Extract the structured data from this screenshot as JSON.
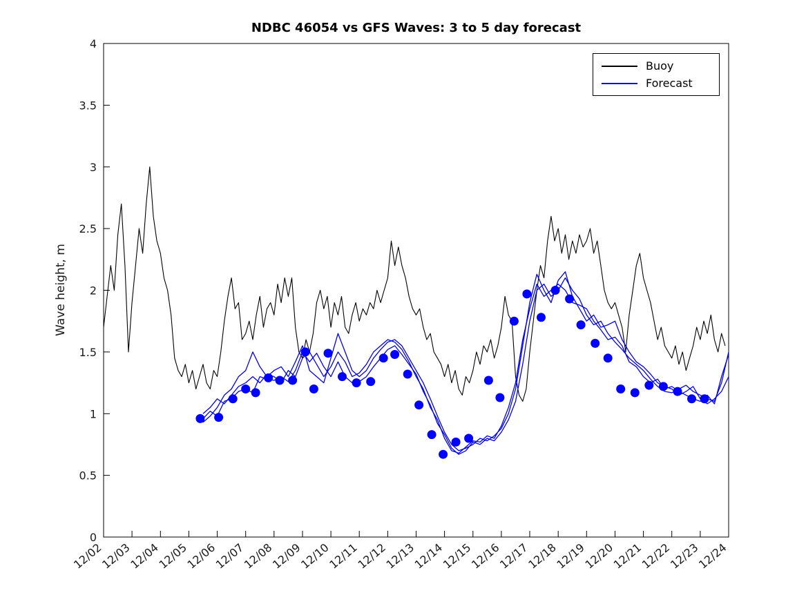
{
  "chart_data": {
    "type": "line",
    "title": "NDBC 46054 vs GFS Waves: 3 to 5 day forecast",
    "xlabel": "",
    "ylabel": "Wave height, m",
    "ylim": [
      0,
      4
    ],
    "yticks": [
      0,
      0.5,
      1,
      1.5,
      2,
      2.5,
      3,
      3.5,
      4
    ],
    "ytick_labels": [
      "0",
      "0.5",
      "1",
      "1.5",
      "2",
      "2.5",
      "3",
      "3.5",
      "4"
    ],
    "x_domain": [
      2,
      24
    ],
    "xtick_labels": [
      "12/02",
      "12/03",
      "12/04",
      "12/05",
      "12/06",
      "12/07",
      "12/08",
      "12/09",
      "12/10",
      "12/11",
      "12/12",
      "12/13",
      "12/14",
      "12/15",
      "12/16",
      "12/17",
      "12/18",
      "12/19",
      "12/20",
      "12/21",
      "12/22",
      "12/23",
      "12/24"
    ],
    "grid": false,
    "legend": {
      "position": "top-right",
      "entries": [
        {
          "label": "Buoy",
          "color": "#000000"
        },
        {
          "label": "Forecast",
          "color": "#0000ee"
        }
      ]
    },
    "series": [
      {
        "id": "buoy-line",
        "name": "Buoy",
        "color": "#000000",
        "width": 1.1,
        "x_start": 2.0,
        "x_step": 0.125,
        "values": [
          1.7,
          1.95,
          2.2,
          2.0,
          2.45,
          2.7,
          2.2,
          1.5,
          1.9,
          2.2,
          2.5,
          2.3,
          2.7,
          3.0,
          2.6,
          2.4,
          2.3,
          2.1,
          2.0,
          1.8,
          1.45,
          1.35,
          1.3,
          1.4,
          1.25,
          1.35,
          1.2,
          1.3,
          1.4,
          1.25,
          1.2,
          1.35,
          1.3,
          1.5,
          1.75,
          1.95,
          2.1,
          1.85,
          1.9,
          1.6,
          1.65,
          1.75,
          1.6,
          1.8,
          1.95,
          1.7,
          1.85,
          1.9,
          1.8,
          2.05,
          1.9,
          2.1,
          1.95,
          2.1,
          1.7,
          1.5,
          1.45,
          1.6,
          1.5,
          1.65,
          1.9,
          2.0,
          1.85,
          1.95,
          1.7,
          1.9,
          1.8,
          1.95,
          1.7,
          1.65,
          1.8,
          1.9,
          1.75,
          1.85,
          1.8,
          1.9,
          1.85,
          2.0,
          1.9,
          2.0,
          2.1,
          2.4,
          2.2,
          2.35,
          2.2,
          2.1,
          1.95,
          1.85,
          1.8,
          1.85,
          1.7,
          1.6,
          1.65,
          1.5,
          1.45,
          1.4,
          1.3,
          1.4,
          1.25,
          1.35,
          1.2,
          1.15,
          1.3,
          1.25,
          1.35,
          1.5,
          1.4,
          1.55,
          1.5,
          1.6,
          1.45,
          1.55,
          1.7,
          1.95,
          1.8,
          1.75,
          1.3,
          1.15,
          1.1,
          1.2,
          1.5,
          1.75,
          2.0,
          2.2,
          2.1,
          2.4,
          2.6,
          2.4,
          2.5,
          2.3,
          2.45,
          2.25,
          2.4,
          2.3,
          2.45,
          2.35,
          2.4,
          2.5,
          2.3,
          2.4,
          2.2,
          2.0,
          1.9,
          1.85,
          1.9,
          1.8,
          1.7,
          1.5,
          1.8,
          2.0,
          2.2,
          2.3,
          2.1,
          2.0,
          1.9,
          1.75,
          1.6,
          1.7,
          1.55,
          1.5,
          1.45,
          1.55,
          1.4,
          1.5,
          1.35,
          1.45,
          1.55,
          1.7,
          1.6,
          1.75,
          1.65,
          1.8,
          1.6,
          1.5,
          1.65,
          1.55
        ]
      },
      {
        "id": "forecast-line-1",
        "name": "Forecast run 1",
        "color": "#0000ee",
        "width": 1.3,
        "x_start": 5.5,
        "x_step": 0.25,
        "values": [
          0.96,
          1.02,
          0.98,
          1.1,
          1.12,
          1.18,
          1.2,
          1.17,
          1.3,
          1.28,
          1.27,
          1.3,
          1.26,
          1.35,
          1.5,
          1.42,
          1.49,
          1.38,
          1.3,
          1.42,
          1.3,
          1.25,
          1.26,
          1.3,
          1.38,
          1.45,
          1.52,
          1.55,
          1.48,
          1.4,
          1.32,
          1.18,
          1.07,
          0.92,
          0.83,
          0.72,
          0.67,
          0.7,
          0.77,
          0.75,
          0.8,
          0.78,
          0.85,
          0.95,
          1.1,
          1.4,
          1.75,
          2.0,
          2.05,
          1.95,
          2.0,
          2.1,
          2.0,
          1.93,
          1.8,
          1.72,
          1.75,
          1.65,
          1.58,
          1.52,
          1.45,
          1.4,
          1.35,
          1.28,
          1.22,
          1.18,
          1.17,
          1.2,
          1.23,
          1.18,
          1.15,
          1.12,
          1.1,
          1.25,
          1.5
        ]
      },
      {
        "id": "forecast-line-2",
        "name": "Forecast run 2",
        "color": "#0000ee",
        "width": 1.3,
        "x_start": 5.5,
        "x_step": 0.25,
        "values": [
          0.93,
          0.98,
          1.05,
          1.15,
          1.2,
          1.3,
          1.35,
          1.5,
          1.38,
          1.3,
          1.35,
          1.38,
          1.3,
          1.42,
          1.55,
          1.35,
          1.3,
          1.25,
          1.45,
          1.65,
          1.5,
          1.35,
          1.3,
          1.35,
          1.45,
          1.52,
          1.58,
          1.6,
          1.55,
          1.45,
          1.35,
          1.25,
          1.12,
          0.98,
          0.85,
          0.75,
          0.7,
          0.72,
          0.75,
          0.8,
          0.78,
          0.82,
          0.88,
          1.0,
          1.2,
          1.55,
          1.9,
          2.13,
          2.0,
          1.9,
          2.08,
          2.15,
          1.95,
          1.85,
          1.75,
          1.8,
          1.7,
          1.72,
          1.75,
          1.6,
          1.5,
          1.42,
          1.38,
          1.32,
          1.25,
          1.22,
          1.2,
          1.15,
          1.18,
          1.22,
          1.12,
          1.08,
          1.12,
          1.18,
          1.3
        ]
      },
      {
        "id": "forecast-line-3",
        "name": "Forecast run 3",
        "color": "#0000ee",
        "width": 1.3,
        "x_start": 5.5,
        "x_step": 0.25,
        "values": [
          1.0,
          1.05,
          1.12,
          1.08,
          1.15,
          1.22,
          1.25,
          1.3,
          1.25,
          1.32,
          1.3,
          1.25,
          1.35,
          1.3,
          1.45,
          1.5,
          1.4,
          1.3,
          1.38,
          1.5,
          1.42,
          1.3,
          1.33,
          1.4,
          1.5,
          1.55,
          1.6,
          1.58,
          1.52,
          1.42,
          1.3,
          1.2,
          1.05,
          0.95,
          0.8,
          0.7,
          0.68,
          0.73,
          0.78,
          0.77,
          0.82,
          0.8,
          0.9,
          1.05,
          1.25,
          1.6,
          1.85,
          2.05,
          1.95,
          2.0,
          2.05,
          2.0,
          1.9,
          1.88,
          1.85,
          1.75,
          1.68,
          1.6,
          1.62,
          1.55,
          1.42,
          1.38,
          1.3,
          1.25,
          1.28,
          1.2,
          1.22,
          1.18,
          1.15,
          1.12,
          1.1,
          1.15,
          1.08,
          1.3,
          1.48
        ]
      }
    ],
    "markers": {
      "name": "Forecast points",
      "color": "#0000ff",
      "radius": 6.5,
      "points": [
        [
          5.4,
          0.96
        ],
        [
          6.05,
          0.97
        ],
        [
          6.55,
          1.12
        ],
        [
          7.0,
          1.2
        ],
        [
          7.35,
          1.17
        ],
        [
          7.8,
          1.29
        ],
        [
          8.2,
          1.27
        ],
        [
          8.65,
          1.27
        ],
        [
          9.1,
          1.5
        ],
        [
          9.4,
          1.2
        ],
        [
          9.9,
          1.49
        ],
        [
          10.4,
          1.3
        ],
        [
          10.9,
          1.25
        ],
        [
          11.4,
          1.26
        ],
        [
          11.85,
          1.45
        ],
        [
          12.25,
          1.48
        ],
        [
          12.7,
          1.32
        ],
        [
          13.1,
          1.07
        ],
        [
          13.55,
          0.83
        ],
        [
          13.95,
          0.67
        ],
        [
          14.4,
          0.77
        ],
        [
          14.85,
          0.8
        ],
        [
          15.55,
          1.27
        ],
        [
          15.95,
          1.13
        ],
        [
          16.45,
          1.75
        ],
        [
          16.9,
          1.97
        ],
        [
          17.4,
          1.78
        ],
        [
          17.9,
          2.0
        ],
        [
          18.4,
          1.93
        ],
        [
          18.8,
          1.72
        ],
        [
          19.3,
          1.57
        ],
        [
          19.75,
          1.45
        ],
        [
          20.2,
          1.2
        ],
        [
          20.7,
          1.17
        ],
        [
          21.2,
          1.23
        ],
        [
          21.7,
          1.22
        ],
        [
          22.2,
          1.18
        ],
        [
          22.7,
          1.12
        ],
        [
          23.15,
          1.12
        ]
      ]
    }
  }
}
